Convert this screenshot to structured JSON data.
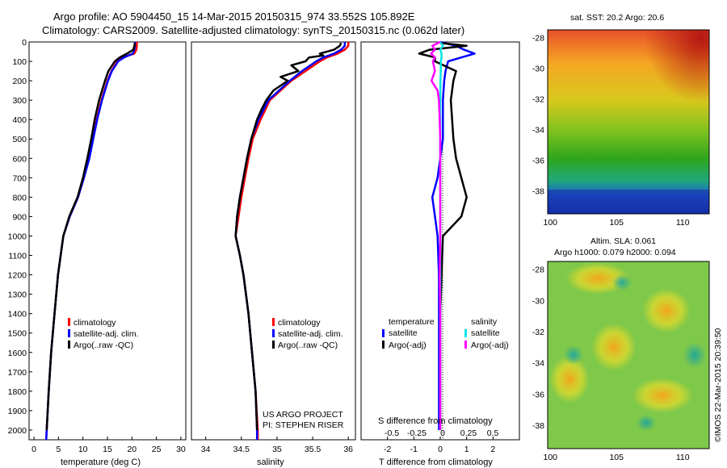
{
  "header": {
    "line1": "Argo profile: AO 5904450_15 14-Mar-2015 20150315_974 33.552S 105.892E",
    "line2": "Climatology: CARS2009. Satellite-adjusted climatology: synTS_20150315.nc (0.062d later)"
  },
  "credit": "©IMOS 22-Mar-2015 20:39:50",
  "project": {
    "line1": "US ARGO PROJECT",
    "line2": "PI: STEPHEN RISER"
  },
  "colors": {
    "climatology": "#ff0000",
    "satellite": "#0000ff",
    "argo": "#000000",
    "sal_satellite": "#00e5e5",
    "sal_argo": "#ff00ff"
  },
  "chart_data": [
    {
      "type": "line",
      "id": "temperature",
      "xlabel": "temperature (deg C)",
      "xlim": [
        -1,
        31
      ],
      "ylim": [
        0,
        2050
      ],
      "xticks": [
        0,
        5,
        10,
        15,
        20,
        25,
        30
      ],
      "yticks": [
        0,
        100,
        200,
        300,
        400,
        500,
        600,
        700,
        800,
        900,
        1000,
        1100,
        1200,
        1300,
        1400,
        1500,
        1600,
        1700,
        1800,
        1900,
        2000
      ],
      "legend": [
        "climatology",
        "satellite-adj. clim.",
        "Argo(..raw -QC)"
      ],
      "series": [
        {
          "name": "climatology",
          "color": "#ff0000",
          "depth": [
            0,
            20,
            40,
            60,
            80,
            100,
            150,
            200,
            300,
            400,
            500,
            600,
            700,
            800,
            900,
            1000,
            1200,
            1400,
            1600,
            1800,
            2000,
            2050
          ],
          "values": [
            21.0,
            21.0,
            20.9,
            20.5,
            18.0,
            17.0,
            15.8,
            15.0,
            13.8,
            12.8,
            12.0,
            11.2,
            10.2,
            9.0,
            7.3,
            6.0,
            4.9,
            4.2,
            3.5,
            3.0,
            2.6,
            2.5
          ]
        },
        {
          "name": "satellite-adj. clim.",
          "color": "#0000ff",
          "depth": [
            0,
            20,
            40,
            60,
            80,
            100,
            150,
            200,
            300,
            400,
            500,
            600,
            700,
            800,
            900,
            1000,
            1200,
            1400,
            1600,
            1800,
            2000,
            2050
          ],
          "values": [
            20.6,
            20.6,
            20.5,
            20.2,
            18.4,
            17.2,
            15.9,
            15.1,
            13.9,
            12.9,
            12.1,
            11.3,
            10.2,
            9.0,
            7.3,
            6.0,
            4.9,
            4.2,
            3.5,
            3.0,
            2.6,
            2.5
          ]
        },
        {
          "name": "Argo(..raw -QC)",
          "color": "#000000",
          "depth": [
            5,
            20,
            40,
            60,
            80,
            100,
            150,
            200,
            300,
            400,
            500,
            600,
            700,
            800,
            900,
            1000,
            1200,
            1400,
            1600,
            1800,
            2000
          ],
          "values": [
            20.6,
            20.5,
            20.3,
            19.0,
            17.5,
            16.5,
            15.2,
            14.5,
            13.3,
            12.4,
            11.7,
            10.9,
            10.0,
            8.9,
            7.2,
            6.0,
            4.9,
            4.2,
            3.5,
            3.0,
            2.6
          ]
        }
      ]
    },
    {
      "type": "line",
      "id": "salinity",
      "xlabel": "salinity",
      "xlim": [
        33.8,
        36.1
      ],
      "ylim": [
        0,
        2050
      ],
      "xticks": [
        34,
        34.5,
        35,
        35.5,
        36
      ],
      "legend": [
        "climatology",
        "satellite-adj. clim.",
        "Argo(..raw -QC)"
      ],
      "series": [
        {
          "name": "climatology",
          "color": "#ff0000",
          "depth": [
            0,
            20,
            40,
            60,
            80,
            100,
            150,
            200,
            300,
            400,
            500,
            600,
            700,
            800,
            900,
            1000,
            1100,
            1200,
            1400,
            1600,
            1800,
            2000,
            2050
          ],
          "values": [
            36.0,
            36.0,
            35.95,
            35.85,
            35.7,
            35.6,
            35.4,
            35.2,
            34.9,
            34.77,
            34.66,
            34.6,
            34.55,
            34.5,
            34.46,
            34.42,
            34.48,
            34.53,
            34.6,
            34.65,
            34.7,
            34.73,
            34.73
          ]
        },
        {
          "name": "satellite-adj. clim.",
          "color": "#0000ff",
          "depth": [
            0,
            20,
            40,
            60,
            80,
            100,
            150,
            200,
            300,
            400,
            500,
            600,
            700,
            800,
            900,
            1000,
            1100,
            1200,
            1400,
            1600,
            1800,
            2000,
            2050
          ],
          "values": [
            35.95,
            35.95,
            35.9,
            35.8,
            35.65,
            35.55,
            35.35,
            35.18,
            34.88,
            34.74,
            34.64,
            34.58,
            34.53,
            34.48,
            34.44,
            34.42,
            34.48,
            34.53,
            34.6,
            34.65,
            34.7,
            34.72,
            34.72
          ]
        },
        {
          "name": "Argo(..raw -QC)",
          "color": "#000000",
          "depth": [
            5,
            20,
            40,
            60,
            70,
            80,
            100,
            120,
            150,
            180,
            200,
            250,
            300,
            350,
            400,
            500,
            600,
            700,
            800,
            900,
            1000,
            1100,
            1200,
            1400,
            1600,
            1800,
            2000
          ],
          "values": [
            35.9,
            35.88,
            35.8,
            35.6,
            35.65,
            35.45,
            35.4,
            35.2,
            35.3,
            35.05,
            35.15,
            34.95,
            34.85,
            34.78,
            34.72,
            34.64,
            34.58,
            34.53,
            34.48,
            34.44,
            34.42,
            34.48,
            34.53,
            34.6,
            34.65,
            34.7,
            34.72
          ]
        }
      ]
    },
    {
      "type": "line",
      "id": "difference",
      "xlabel": "T difference from climatology",
      "xlabel_top": "S difference from climatology",
      "xlim": [
        -3,
        3
      ],
      "ylim": [
        0,
        2050
      ],
      "xticks": [
        -2,
        -1,
        0,
        1,
        2
      ],
      "xticks_top": [
        -0.5,
        -0.25,
        0,
        0.25,
        0.5
      ],
      "legend_headers": [
        "temperature",
        "salinity"
      ],
      "legend": [
        "satellite",
        "Argo(-adj)",
        "satellite",
        "Argo(-adj)"
      ],
      "series": [
        {
          "name": "temperature satellite",
          "color": "#0000ff",
          "depth": [
            0,
            20,
            40,
            60,
            80,
            100,
            150,
            200,
            300,
            400,
            500,
            600,
            700,
            800,
            900,
            1000,
            1200,
            1400,
            1600,
            1800,
            2000
          ],
          "values": [
            0.0,
            0.6,
            0.9,
            1.3,
            0.8,
            0.3,
            0.2,
            0.15,
            0.1,
            0.1,
            0.1,
            0.0,
            -0.1,
            -0.3,
            -0.2,
            -0.1,
            -0.05,
            -0.05,
            -0.05,
            -0.05,
            -0.05
          ]
        },
        {
          "name": "temperature Argo(-adj)",
          "color": "#000000",
          "depth": [
            5,
            20,
            40,
            60,
            80,
            100,
            150,
            200,
            300,
            400,
            500,
            600,
            700,
            800,
            900,
            1000,
            1200,
            1400,
            1600,
            1800,
            2000
          ],
          "values": [
            0.0,
            1.0,
            -0.4,
            -0.8,
            -0.2,
            -0.2,
            0.6,
            0.5,
            0.4,
            0.45,
            0.5,
            0.6,
            0.8,
            1.0,
            0.8,
            0.1,
            0.05,
            0.0,
            0.0,
            0.0,
            0.0
          ]
        },
        {
          "name": "salinity satellite",
          "color": "#00e5e5",
          "depth": [
            0,
            20,
            40,
            60,
            80,
            100,
            150,
            200,
            300,
            400,
            500,
            600,
            800,
            1000,
            1200,
            1400,
            1600,
            1800,
            2000
          ],
          "values": [
            0.0,
            0.1,
            0.0,
            0.05,
            0.05,
            0.02,
            0.02,
            0.01,
            0.0,
            0.0,
            0.0,
            0.0,
            0.0,
            0.0,
            0.0,
            0.0,
            0.0,
            0.0,
            0.0
          ]
        },
        {
          "name": "salinity Argo(-adj)",
          "color": "#ff00ff",
          "depth": [
            0,
            20,
            40,
            60,
            80,
            100,
            150,
            200,
            250,
            300,
            400,
            500,
            600,
            800,
            1000,
            1200,
            1400,
            1600,
            1800,
            2000
          ],
          "values": [
            0.0,
            -0.3,
            -0.2,
            -0.35,
            -0.2,
            -0.28,
            -0.2,
            -0.33,
            -0.1,
            -0.05,
            -0.02,
            0.0,
            0.0,
            0.0,
            0.0,
            -0.02,
            0.0,
            0.0,
            0.0,
            0.0
          ]
        }
      ]
    },
    {
      "type": "heatmap",
      "id": "sst-map",
      "title": "sat. SST: 20.2 Argo: 20.6",
      "xticks": [
        100,
        105,
        110
      ],
      "yticks": [
        -28,
        -30,
        -32,
        -34,
        -36,
        -38
      ],
      "xlim": [
        99.8,
        112
      ],
      "ylim": [
        -39.5,
        -27.5
      ]
    },
    {
      "type": "heatmap",
      "id": "sla-map",
      "title": "Altim. SLA: 0.061",
      "subtitle": "Argo h1000: 0.079 h2000: 0.094",
      "xticks": [
        100,
        105,
        110
      ],
      "yticks": [
        -28,
        -30,
        -32,
        -34,
        -36,
        -38
      ],
      "xlim": [
        99.8,
        112
      ],
      "ylim": [
        -39.5,
        -27.5
      ]
    }
  ]
}
